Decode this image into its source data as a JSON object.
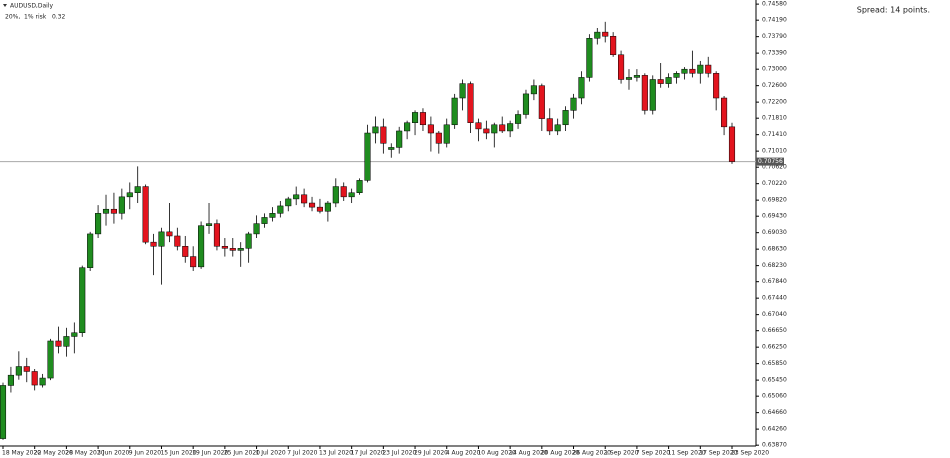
{
  "chart_data": {
    "type": "candlestick",
    "title": "AUDUSD,Daily",
    "info": "20%,  1% risk   0.32",
    "spread": "Spread: 14 points.",
    "up_color": "#1f8c1f",
    "down_color": "#e3141e",
    "current_price": {
      "value": 0.70756,
      "label": "0.70756"
    },
    "categories": [
      "18 May 2020",
      null,
      null,
      null,
      "22 May 2020",
      null,
      null,
      null,
      "28 May 2020",
      null,
      null,
      null,
      "3 Jun 2020",
      null,
      null,
      null,
      "9 Jun 2020",
      null,
      null,
      null,
      "15 Jun 2020",
      null,
      null,
      null,
      "19 Jun 2020",
      null,
      null,
      null,
      "25 Jun 2020",
      null,
      null,
      null,
      "1 Jul 2020",
      null,
      null,
      null,
      "7 Jul 2020",
      null,
      null,
      null,
      "13 Jul 2020",
      null,
      null,
      null,
      "17 Jul 2020",
      null,
      null,
      null,
      "23 Jul 2020",
      null,
      null,
      null,
      "29 Jul 2020",
      null,
      null,
      null,
      "4 Aug 2020",
      null,
      null,
      null,
      "10 Aug 2020",
      null,
      null,
      null,
      "14 Aug 2020",
      null,
      null,
      null,
      "20 Aug 2020",
      null,
      null,
      null,
      "26 Aug 2020",
      null,
      null,
      null,
      "1 Sep 2020",
      null,
      null,
      null,
      "7 Sep 2020",
      null,
      null,
      null,
      "11 Sep 2020",
      null,
      null,
      null,
      "17 Sep 2020",
      null,
      null,
      null,
      "23 Sep 2020"
    ],
    "open": [
      0.6403,
      0.6532,
      0.6557,
      0.6578,
      0.6566,
      0.6533,
      0.655,
      0.664,
      0.6627,
      0.6651,
      0.666,
      0.6818,
      0.69,
      0.695,
      0.696,
      0.695,
      0.699,
      0.7,
      0.7015,
      0.688,
      0.687,
      0.6905,
      0.6895,
      0.687,
      0.6845,
      0.682,
      0.692,
      0.6925,
      0.687,
      0.6865,
      0.686,
      0.6865,
      0.69,
      0.6925,
      0.694,
      0.695,
      0.6968,
      0.6985,
      0.6995,
      0.6975,
      0.6965,
      0.6955,
      0.6975,
      0.7015,
      0.699,
      0.7,
      0.703,
      0.7145,
      0.716,
      0.7105,
      0.711,
      0.715,
      0.717,
      0.7195,
      0.7165,
      0.7145,
      0.712,
      0.7165,
      0.723,
      0.7265,
      0.717,
      0.7155,
      0.7145,
      0.7165,
      0.715,
      0.7168,
      0.719,
      0.724,
      0.726,
      0.718,
      0.715,
      0.7165,
      0.72,
      0.723,
      0.728,
      0.7375,
      0.739,
      0.738,
      0.7335,
      0.7275,
      0.728,
      0.7285,
      0.72,
      0.7275,
      0.7265,
      0.728,
      0.729,
      0.73,
      0.729,
      0.731,
      0.729,
      0.723,
      0.716
    ],
    "high": [
      0.6539,
      0.6577,
      0.6615,
      0.6599,
      0.6572,
      0.656,
      0.6645,
      0.6675,
      0.6672,
      0.6685,
      0.6823,
      0.6905,
      0.697,
      0.6995,
      0.7,
      0.701,
      0.7025,
      0.7064,
      0.702,
      0.69,
      0.6915,
      0.6975,
      0.6915,
      0.6895,
      0.687,
      0.693,
      0.6975,
      0.6935,
      0.689,
      0.689,
      0.688,
      0.6905,
      0.6945,
      0.695,
      0.6965,
      0.698,
      0.699,
      0.7015,
      0.701,
      0.699,
      0.6985,
      0.698,
      0.7035,
      0.7025,
      0.701,
      0.7035,
      0.7165,
      0.7185,
      0.718,
      0.712,
      0.716,
      0.7175,
      0.72,
      0.7205,
      0.7185,
      0.715,
      0.718,
      0.724,
      0.7275,
      0.727,
      0.718,
      0.7175,
      0.717,
      0.7185,
      0.7175,
      0.72,
      0.725,
      0.7275,
      0.7265,
      0.7205,
      0.718,
      0.721,
      0.724,
      0.7295,
      0.7385,
      0.74,
      0.7415,
      0.739,
      0.7345,
      0.73,
      0.73,
      0.729,
      0.7285,
      0.7315,
      0.729,
      0.7295,
      0.7305,
      0.7345,
      0.732,
      0.733,
      0.7295,
      0.7235,
      0.717
    ],
    "low": [
      0.64,
      0.6515,
      0.6546,
      0.654,
      0.652,
      0.6527,
      0.6545,
      0.661,
      0.6602,
      0.661,
      0.665,
      0.681,
      0.689,
      0.692,
      0.6925,
      0.6935,
      0.696,
      0.6975,
      0.6875,
      0.68,
      0.6777,
      0.688,
      0.686,
      0.683,
      0.681,
      0.6815,
      0.69,
      0.686,
      0.6845,
      0.6845,
      0.682,
      0.683,
      0.689,
      0.6915,
      0.693,
      0.694,
      0.6955,
      0.697,
      0.6965,
      0.6955,
      0.695,
      0.693,
      0.6965,
      0.698,
      0.6975,
      0.6995,
      0.7025,
      0.712,
      0.7095,
      0.7085,
      0.7095,
      0.713,
      0.714,
      0.715,
      0.71,
      0.7095,
      0.711,
      0.7155,
      0.72,
      0.7145,
      0.7125,
      0.713,
      0.711,
      0.7145,
      0.7135,
      0.7155,
      0.718,
      0.7225,
      0.715,
      0.714,
      0.714,
      0.715,
      0.718,
      0.7215,
      0.727,
      0.736,
      0.7365,
      0.733,
      0.7265,
      0.725,
      0.727,
      0.719,
      0.719,
      0.7255,
      0.7255,
      0.7265,
      0.7275,
      0.728,
      0.7265,
      0.728,
      0.72,
      0.714,
      0.707
    ],
    "close": [
      0.6532,
      0.6557,
      0.6578,
      0.6566,
      0.6533,
      0.655,
      0.664,
      0.6627,
      0.6651,
      0.666,
      0.6818,
      0.69,
      0.695,
      0.696,
      0.695,
      0.699,
      0.7,
      0.7015,
      0.688,
      0.687,
      0.6905,
      0.6895,
      0.687,
      0.6845,
      0.682,
      0.692,
      0.6925,
      0.687,
      0.6865,
      0.686,
      0.6865,
      0.69,
      0.6925,
      0.694,
      0.695,
      0.6968,
      0.6985,
      0.6995,
      0.6975,
      0.6965,
      0.6955,
      0.6975,
      0.7015,
      0.699,
      0.7,
      0.703,
      0.7145,
      0.716,
      0.712,
      0.711,
      0.715,
      0.717,
      0.7195,
      0.7165,
      0.7145,
      0.712,
      0.7165,
      0.723,
      0.7265,
      0.717,
      0.7155,
      0.7145,
      0.7165,
      0.715,
      0.7168,
      0.719,
      0.724,
      0.726,
      0.718,
      0.715,
      0.7165,
      0.72,
      0.723,
      0.728,
      0.7375,
      0.739,
      0.738,
      0.7335,
      0.7275,
      0.728,
      0.7285,
      0.72,
      0.7275,
      0.7265,
      0.728,
      0.729,
      0.73,
      0.729,
      0.731,
      0.729,
      0.723,
      0.716,
      0.70756
    ],
    "ylim": [
      0.6385,
      0.7468
    ],
    "yticks": [
      {
        "value": 0.7458,
        "label": "0.74580"
      },
      {
        "value": 0.7419,
        "label": "0.74190"
      },
      {
        "value": 0.7379,
        "label": "0.73790"
      },
      {
        "value": 0.7339,
        "label": "0.73390"
      },
      {
        "value": 0.73,
        "label": "0.73000"
      },
      {
        "value": 0.726,
        "label": "0.72600"
      },
      {
        "value": 0.722,
        "label": "0.72200"
      },
      {
        "value": 0.7181,
        "label": "0.71810"
      },
      {
        "value": 0.7141,
        "label": "0.71410"
      },
      {
        "value": 0.7101,
        "label": "0.71010"
      },
      {
        "value": 0.7062,
        "label": "0.70620"
      },
      {
        "value": 0.7022,
        "label": "0.70220"
      },
      {
        "value": 0.6982,
        "label": "0.69820"
      },
      {
        "value": 0.6943,
        "label": "0.69430"
      },
      {
        "value": 0.6903,
        "label": "0.69030"
      },
      {
        "value": 0.6863,
        "label": "0.68630"
      },
      {
        "value": 0.6823,
        "label": "0.68230"
      },
      {
        "value": 0.6784,
        "label": "0.67840"
      },
      {
        "value": 0.6744,
        "label": "0.67440"
      },
      {
        "value": 0.6704,
        "label": "0.67040"
      },
      {
        "value": 0.6665,
        "label": "0.66650"
      },
      {
        "value": 0.6625,
        "label": "0.66250"
      },
      {
        "value": 0.6585,
        "label": "0.65850"
      },
      {
        "value": 0.6545,
        "label": "0.65450"
      },
      {
        "value": 0.6506,
        "label": "0.65060"
      },
      {
        "value": 0.6466,
        "label": "0.64660"
      },
      {
        "value": 0.6426,
        "label": "0.64260"
      },
      {
        "value": 0.6387,
        "label": "0.63870"
      }
    ],
    "grid": false
  }
}
